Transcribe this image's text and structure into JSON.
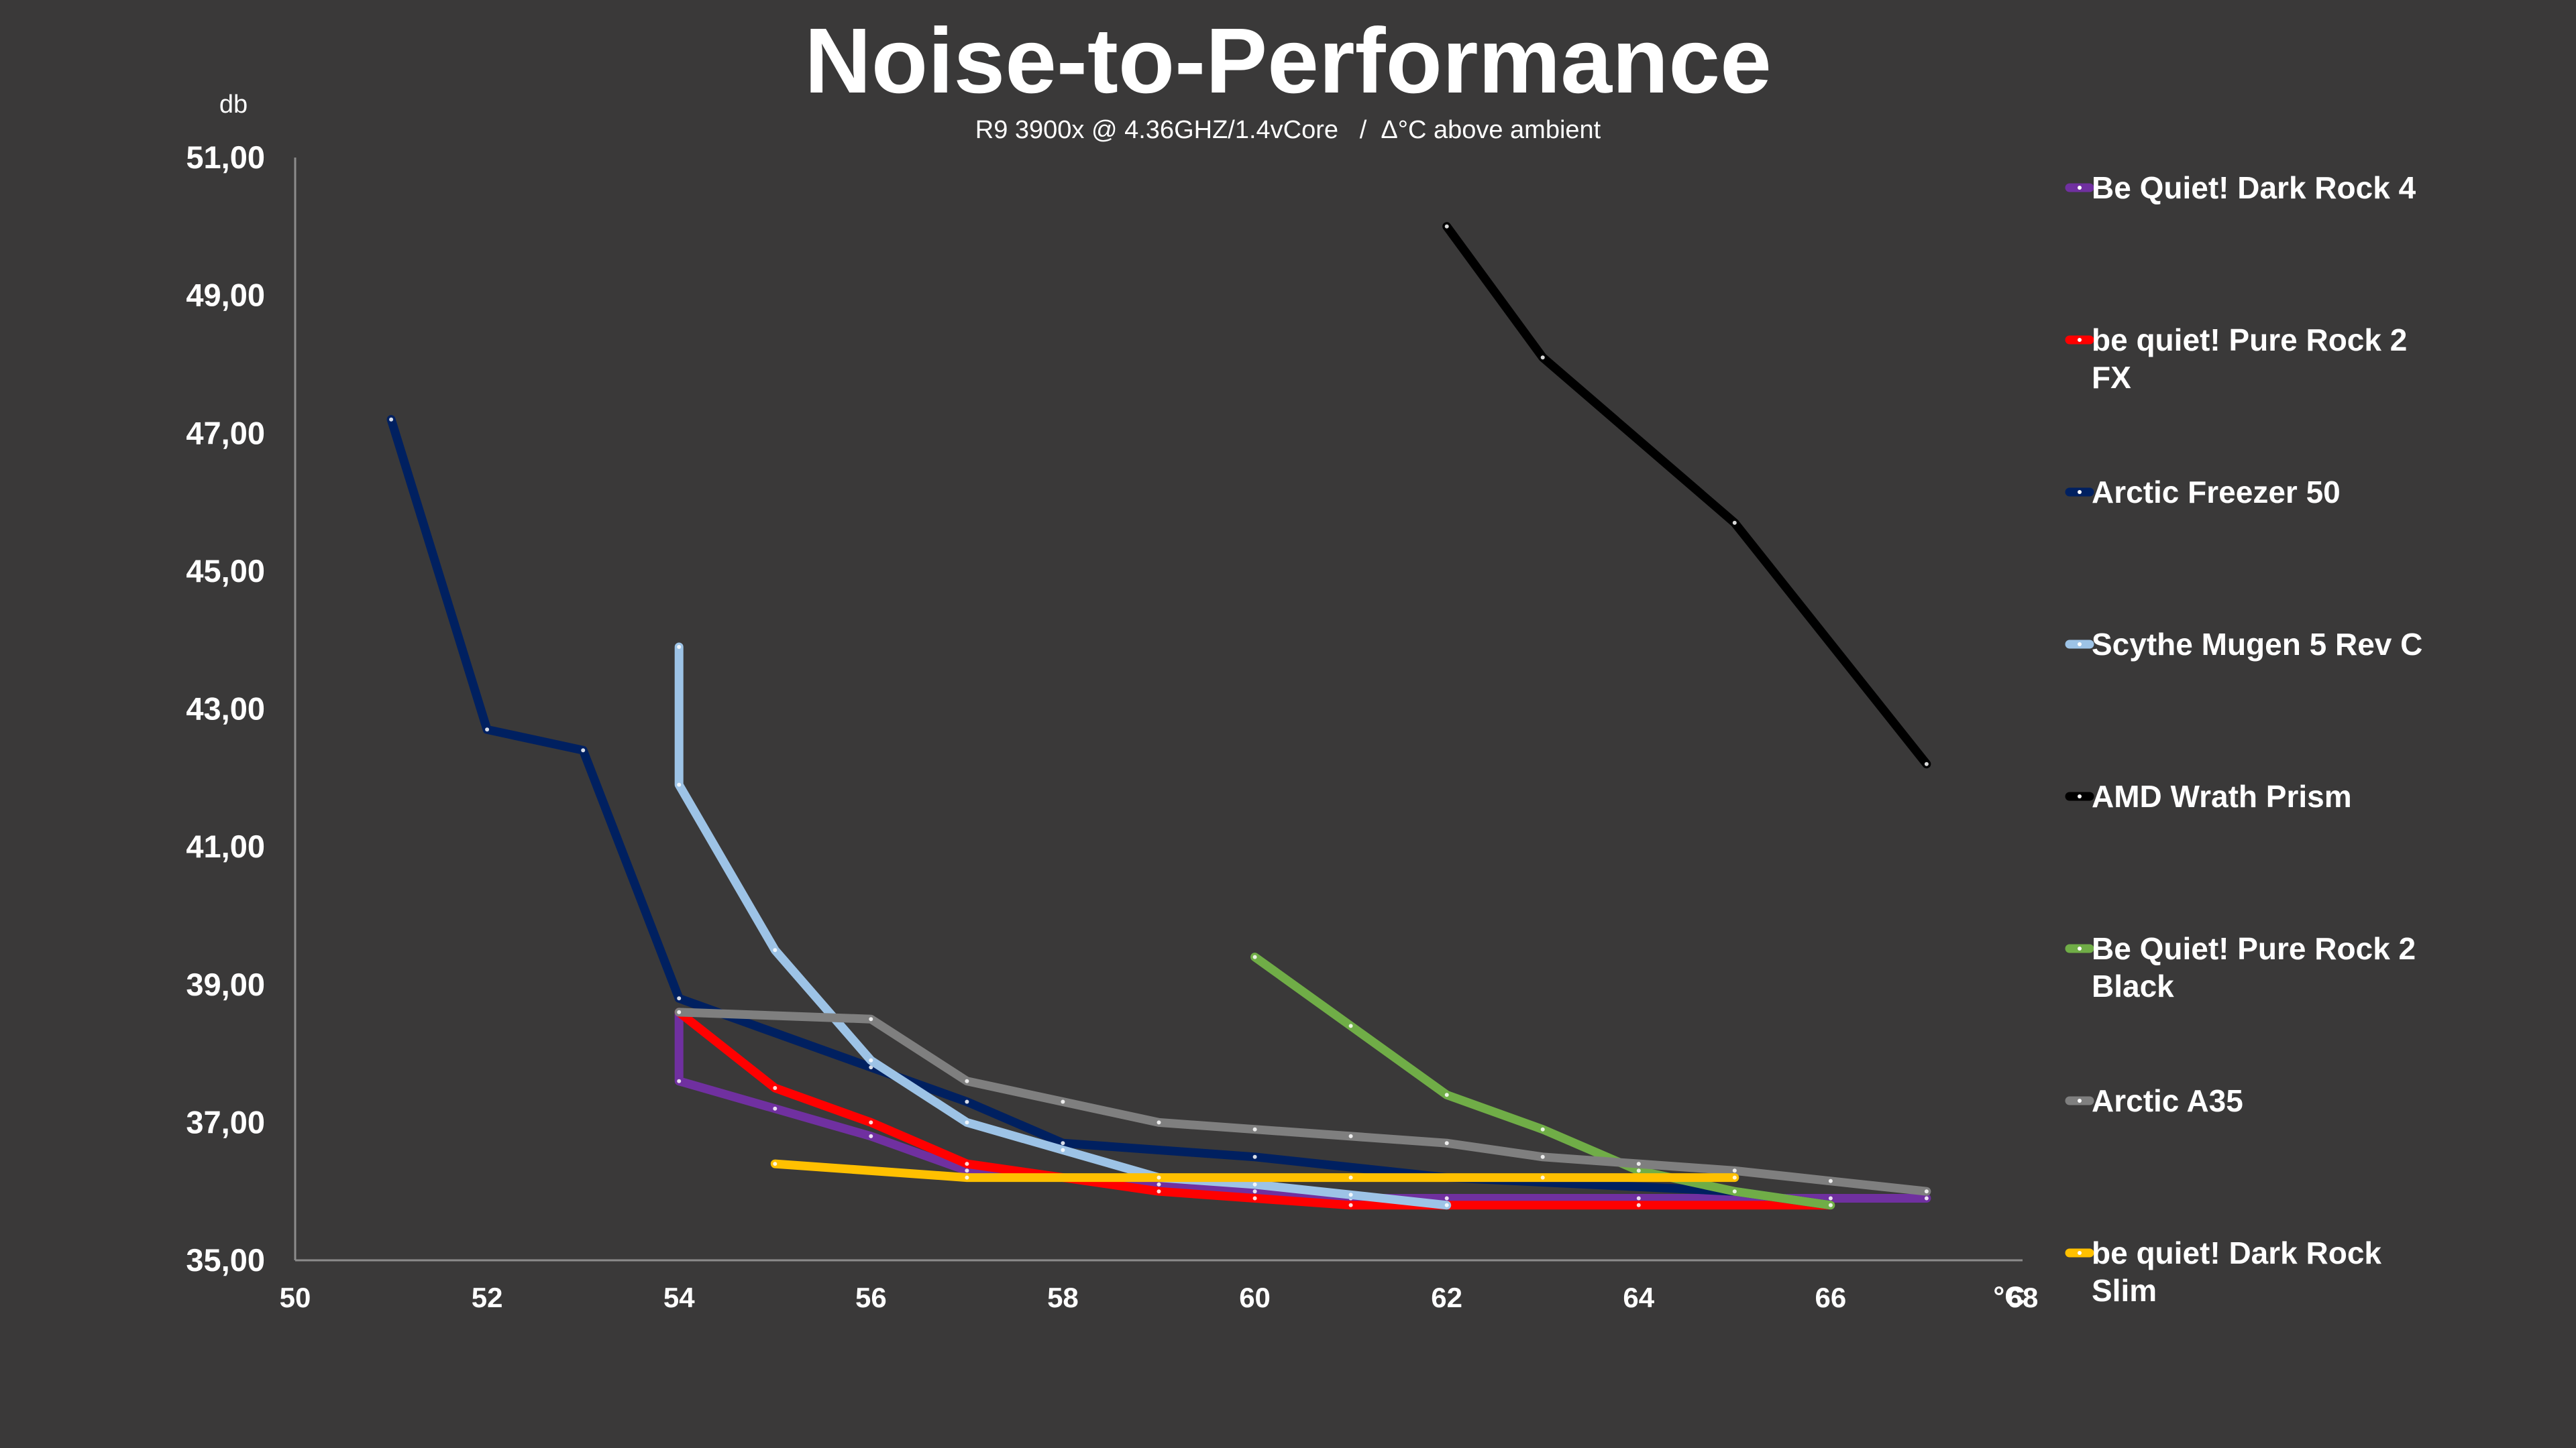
{
  "chart_data": {
    "type": "line",
    "title": "Noise-to-Performance",
    "subtitle": "R9 3900x @ 4.36GHZ/1.4vCore   /  Δ°C above ambient",
    "ylabel": "db",
    "xlabel": "°C",
    "xlim": [
      50,
      68
    ],
    "ylim": [
      35,
      51
    ],
    "x_ticks": [
      "50",
      "52",
      "54",
      "56",
      "58",
      "60",
      "62",
      "64",
      "66",
      "68"
    ],
    "y_ticks": [
      "35,00",
      "37,00",
      "39,00",
      "41,00",
      "43,00",
      "45,00",
      "47,00",
      "49,00",
      "51,00"
    ],
    "grid": false,
    "legend_position": "right",
    "series": [
      {
        "name": "Be Quiet! Dark Rock 4",
        "legend_lines": [
          "Be Quiet! Dark Rock 4"
        ],
        "color": "#7030a0",
        "points": [
          [
            54,
            38.6
          ],
          [
            54,
            37.6
          ],
          [
            55,
            37.2
          ],
          [
            56,
            36.8
          ],
          [
            57,
            36.3
          ],
          [
            58,
            36.2
          ],
          [
            59,
            36.1
          ],
          [
            60,
            36.0
          ],
          [
            61,
            35.9
          ],
          [
            62,
            35.9
          ],
          [
            64,
            35.9
          ],
          [
            66,
            35.9
          ],
          [
            67,
            35.9
          ]
        ]
      },
      {
        "name": "be quiet! Pure Rock 2 FX",
        "legend_lines": [
          "be quiet! Pure Rock 2",
          "FX"
        ],
        "color": "#ff0000",
        "points": [
          [
            54,
            38.6
          ],
          [
            55,
            37.5
          ],
          [
            56,
            37.0
          ],
          [
            57,
            36.4
          ],
          [
            58,
            36.2
          ],
          [
            59,
            36.0
          ],
          [
            60,
            35.9
          ],
          [
            61,
            35.8
          ],
          [
            62,
            35.8
          ],
          [
            64,
            35.8
          ],
          [
            66,
            35.8
          ]
        ]
      },
      {
        "name": "Arctic Freezer 50",
        "legend_lines": [
          "Arctic Freezer 50"
        ],
        "color": "#002060",
        "points": [
          [
            51,
            47.2
          ],
          [
            52,
            42.7
          ],
          [
            53,
            42.4
          ],
          [
            54,
            38.8
          ],
          [
            56,
            37.8
          ],
          [
            57,
            37.3
          ],
          [
            58,
            36.7
          ],
          [
            60,
            36.5
          ],
          [
            62,
            36.2
          ],
          [
            65,
            36.0
          ],
          [
            66,
            35.8
          ]
        ]
      },
      {
        "name": "Scythe Mugen 5 Rev C",
        "legend_lines": [
          "Scythe Mugen 5 Rev C"
        ],
        "color": "#9dc3e6",
        "points": [
          [
            54,
            43.9
          ],
          [
            54,
            41.9
          ],
          [
            55,
            39.5
          ],
          [
            56,
            37.9
          ],
          [
            57,
            37.0
          ],
          [
            58,
            36.6
          ],
          [
            59,
            36.2
          ],
          [
            60,
            36.1
          ],
          [
            61,
            35.95
          ],
          [
            62,
            35.8
          ]
        ]
      },
      {
        "name": "AMD Wrath Prism",
        "legend_lines": [
          "AMD Wrath Prism"
        ],
        "color": "#000000",
        "points": [
          [
            62,
            50.0
          ],
          [
            63,
            48.1
          ],
          [
            65,
            45.7
          ],
          [
            67,
            42.2
          ]
        ]
      },
      {
        "name": "Be Quiet! Pure Rock 2 Black",
        "legend_lines": [
          "Be Quiet! Pure Rock 2",
          "Black"
        ],
        "color": "#70ad47",
        "points": [
          [
            60,
            39.4
          ],
          [
            61,
            38.4
          ],
          [
            62,
            37.4
          ],
          [
            63,
            36.9
          ],
          [
            64,
            36.3
          ],
          [
            65,
            36.0
          ],
          [
            66,
            35.8
          ]
        ]
      },
      {
        "name": "Arctic A35",
        "legend_lines": [
          "Arctic A35"
        ],
        "color": "#7f7f7f",
        "points": [
          [
            54,
            38.6
          ],
          [
            56,
            38.5
          ],
          [
            57,
            37.6
          ],
          [
            58,
            37.3
          ],
          [
            59,
            37.0
          ],
          [
            60,
            36.9
          ],
          [
            61,
            36.8
          ],
          [
            62,
            36.7
          ],
          [
            63,
            36.5
          ],
          [
            64,
            36.4
          ],
          [
            65,
            36.3
          ],
          [
            66,
            36.15
          ],
          [
            67,
            36.0
          ]
        ]
      },
      {
        "name": "be quiet! Dark Rock Slim",
        "legend_lines": [
          "be quiet! Dark Rock",
          "Slim"
        ],
        "color": "#ffc000",
        "points": [
          [
            55,
            36.4
          ],
          [
            57,
            36.2
          ],
          [
            59,
            36.2
          ],
          [
            61,
            36.2
          ],
          [
            63,
            36.2
          ],
          [
            65,
            36.2
          ]
        ]
      }
    ]
  }
}
